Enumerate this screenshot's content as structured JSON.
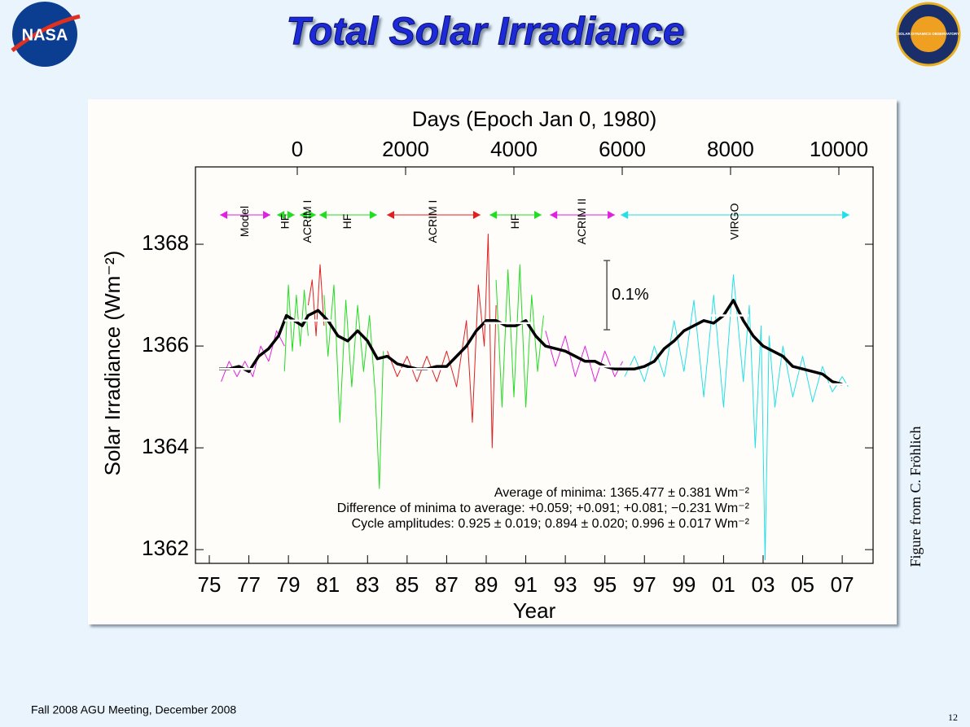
{
  "slide": {
    "title": "Total Solar Irradiance",
    "footer": "Fall 2008 AGU Meeting, December 2008",
    "page": "12",
    "credit": "Figure from C. Fröhlich",
    "logos": [
      "NASA",
      "SOLAR DYNAMICS OBSERVATORY"
    ]
  },
  "chart_data": {
    "type": "line",
    "x_label": "Year",
    "x2_label": "Days (Epoch Jan 0, 1980)",
    "y_label": "Solar Irradiance (Wm⁻²)",
    "xlim": [
      1974.3,
      2008.56
    ],
    "xticks": [
      {
        "value": 1975,
        "label": "75"
      },
      {
        "value": 1977,
        "label": "77"
      },
      {
        "value": 1979,
        "label": "79"
      },
      {
        "value": 1981,
        "label": "81"
      },
      {
        "value": 1983,
        "label": "83"
      },
      {
        "value": 1985,
        "label": "85"
      },
      {
        "value": 1987,
        "label": "87"
      },
      {
        "value": 1989,
        "label": "89"
      },
      {
        "value": 1991,
        "label": "91"
      },
      {
        "value": 1993,
        "label": "93"
      },
      {
        "value": 1995,
        "label": "95"
      },
      {
        "value": 1997,
        "label": "97"
      },
      {
        "value": 1999,
        "label": "99"
      },
      {
        "value": 2001,
        "label": "01"
      },
      {
        "value": 2003,
        "label": "03"
      },
      {
        "value": 2005,
        "label": "05"
      },
      {
        "value": 2007,
        "label": "07"
      }
    ],
    "x2lim": [
      -1880,
      10632
    ],
    "x2ticks": [
      0,
      2000,
      4000,
      6000,
      8000,
      10000
    ],
    "ylim": [
      1361.73,
      1369.52
    ],
    "yticks": [
      1362,
      1364,
      1366,
      1368
    ],
    "series": [
      {
        "color": "#e020e0",
        "x": [
          1975.6,
          1976.0,
          1976.4,
          1976.8,
          1977.2,
          1977.6,
          1978.0,
          1978.4,
          1978.8
        ],
        "values": [
          1365.3,
          1365.7,
          1365.4,
          1365.7,
          1365.4,
          1366.0,
          1365.7,
          1366.3,
          1366.0
        ]
      },
      {
        "color": "#22dd22",
        "x": [
          1978.8,
          1979.0,
          1979.2,
          1979.4,
          1979.6,
          1979.8,
          1980.0
        ],
        "values": [
          1365.5,
          1367.2,
          1365.9,
          1367.0,
          1366.0,
          1367.1,
          1366.2
        ]
      },
      {
        "color": "#e02020",
        "x": [
          1980.0,
          1980.2,
          1980.4,
          1980.6,
          1980.8
        ],
        "values": [
          1366.8,
          1367.3,
          1366.2,
          1367.6,
          1366.4
        ]
      },
      {
        "color": "#22dd22",
        "x": [
          1980.8,
          1981.0,
          1981.3,
          1981.6,
          1981.9,
          1982.2,
          1982.5,
          1982.8,
          1983.1,
          1983.4,
          1983.6,
          1983.8
        ],
        "values": [
          1367.0,
          1365.8,
          1367.2,
          1364.5,
          1366.9,
          1365.2,
          1366.8,
          1365.5,
          1366.6,
          1365.0,
          1363.2,
          1365.9
        ]
      },
      {
        "color": "#e02020",
        "x": [
          1984.0,
          1984.5,
          1985.0,
          1985.5,
          1986.0,
          1986.5,
          1987.0,
          1987.5,
          1988.0,
          1988.3,
          1988.6,
          1988.9,
          1989.1,
          1989.3,
          1989.5
        ],
        "values": [
          1365.9,
          1365.4,
          1365.8,
          1365.3,
          1365.8,
          1365.3,
          1365.9,
          1365.2,
          1366.5,
          1364.5,
          1367.2,
          1366.0,
          1368.2,
          1364.0,
          1366.8
        ]
      },
      {
        "color": "#22dd22",
        "x": [
          1989.5,
          1989.8,
          1990.1,
          1990.4,
          1990.7,
          1991.0,
          1991.3,
          1991.6,
          1991.9
        ],
        "values": [
          1367.3,
          1364.8,
          1367.5,
          1365.0,
          1367.6,
          1364.8,
          1367.0,
          1365.5,
          1366.6
        ]
      },
      {
        "color": "#e020e0",
        "x": [
          1992.0,
          1992.5,
          1993.0,
          1993.5,
          1994.0,
          1994.5,
          1995.0,
          1995.5,
          1995.9
        ],
        "values": [
          1366.3,
          1365.6,
          1366.2,
          1365.4,
          1366.0,
          1365.3,
          1365.9,
          1365.4,
          1365.7
        ]
      },
      {
        "color": "#22e0e8",
        "x": [
          1996.0,
          1996.5,
          1997.0,
          1997.5,
          1998.0,
          1998.5,
          1999.0,
          1999.5,
          2000.0,
          2000.5,
          2001.0,
          2001.5,
          2002.0,
          2002.3,
          2002.6,
          2002.9,
          2003.1,
          2003.3,
          2003.6,
          2004.0,
          2004.5,
          2005.0,
          2005.5,
          2006.0,
          2006.5,
          2007.0,
          2007.3
        ],
        "values": [
          1365.4,
          1365.8,
          1365.3,
          1366.0,
          1365.4,
          1366.5,
          1365.5,
          1366.9,
          1365.0,
          1367.0,
          1364.8,
          1367.4,
          1365.3,
          1366.8,
          1364.0,
          1366.4,
          1361.8,
          1366.2,
          1364.8,
          1366.0,
          1365.0,
          1365.8,
          1364.9,
          1365.6,
          1365.1,
          1365.4,
          1365.2
        ]
      },
      {
        "color": "#000000",
        "x": [
          1975.5,
          1976,
          1976.5,
          1977,
          1977.5,
          1978,
          1978.5,
          1978.9,
          1979.3,
          1979.7,
          1980,
          1980.5,
          1981,
          1981.5,
          1982,
          1982.5,
          1983,
          1983.5,
          1984,
          1984.5,
          1985,
          1985.5,
          1986,
          1986.5,
          1987,
          1987.5,
          1988,
          1988.5,
          1989,
          1989.5,
          1990,
          1990.5,
          1991,
          1991.5,
          1992,
          1992.5,
          1993,
          1993.5,
          1994,
          1994.5,
          1995,
          1995.5,
          1996,
          1996.5,
          1997,
          1997.5,
          1998,
          1998.5,
          1999,
          1999.5,
          2000,
          2000.5,
          2001,
          2001.5,
          2002,
          2002.5,
          2003,
          2003.5,
          2004,
          2004.5,
          2005,
          2005.5,
          2006,
          2006.5,
          2007
        ],
        "values": [
          1365.55,
          1365.55,
          1365.6,
          1365.5,
          1365.8,
          1365.95,
          1366.2,
          1366.6,
          1366.5,
          1366.4,
          1366.6,
          1366.7,
          1366.5,
          1366.2,
          1366.1,
          1366.3,
          1366.1,
          1365.75,
          1365.8,
          1365.65,
          1365.6,
          1365.55,
          1365.55,
          1365.6,
          1365.6,
          1365.8,
          1366.0,
          1366.3,
          1366.5,
          1366.5,
          1366.4,
          1366.4,
          1366.5,
          1366.2,
          1366.0,
          1365.95,
          1365.9,
          1365.8,
          1365.7,
          1365.7,
          1365.6,
          1365.55,
          1365.55,
          1365.55,
          1365.6,
          1365.7,
          1365.95,
          1366.1,
          1366.3,
          1366.4,
          1366.5,
          1366.45,
          1366.6,
          1366.9,
          1366.5,
          1366.2,
          1366.0,
          1365.9,
          1365.8,
          1365.6,
          1365.55,
          1365.5,
          1365.45,
          1365.3,
          1365.25
        ]
      }
    ],
    "reference_levels": [
      {
        "x": [
          1975.5,
          1977.3
        ],
        "value": 1365.55
      },
      {
        "x": [
          1978.8,
          1981.3
        ],
        "value": 1366.5
      },
      {
        "x": [
          1984.6,
          1987.0
        ],
        "value": 1365.55
      },
      {
        "x": [
          1988.9,
          1991.4
        ],
        "value": 1366.45
      },
      {
        "x": [
          1994.3,
          1996.5
        ],
        "value": 1365.6
      },
      {
        "x": [
          2000.0,
          2002.3
        ],
        "value": 1366.6
      },
      {
        "x": [
          2006.2,
          2007.3
        ],
        "value": 1365.25
      }
    ],
    "instruments": [
      {
        "label": "Model",
        "start": 1975.54,
        "end": 1978.09,
        "color": "#e020e0"
      },
      {
        "label": "HF",
        "start": 1978.42,
        "end": 1979.32,
        "color": "#22dd22"
      },
      {
        "label": "ACRIM I",
        "start": 1979.57,
        "end": 1980.4,
        "color": "#22dd22"
      },
      {
        "label": "HF",
        "start": 1980.56,
        "end": 1983.48,
        "color": "#22dd22"
      },
      {
        "label": "ACRIM I",
        "start": 1983.98,
        "end": 1988.71,
        "color": "#e02020"
      },
      {
        "label": "HF",
        "start": 1989.17,
        "end": 1991.8,
        "color": "#22dd22"
      },
      {
        "label": "ACRIM II",
        "start": 1992.22,
        "end": 1995.51,
        "color": "#e020e0"
      },
      {
        "label": "VIRGO",
        "start": 1995.8,
        "end": 2007.37,
        "color": "#22e0e8"
      }
    ],
    "scale_bar": {
      "label": "0.1%",
      "x": 1995.1,
      "range": [
        1366.32,
        1367.68
      ]
    },
    "annotations": [
      "Average of minima:  1365.477 ± 0.381 Wm⁻²",
      "Difference of minima to average: +0.059; +0.091; +0.081; −0.231 Wm⁻²",
      "Cycle amplitudes:  0.925 ± 0.019; 0.894 ± 0.020; 0.996 ± 0.017 Wm⁻²"
    ]
  }
}
